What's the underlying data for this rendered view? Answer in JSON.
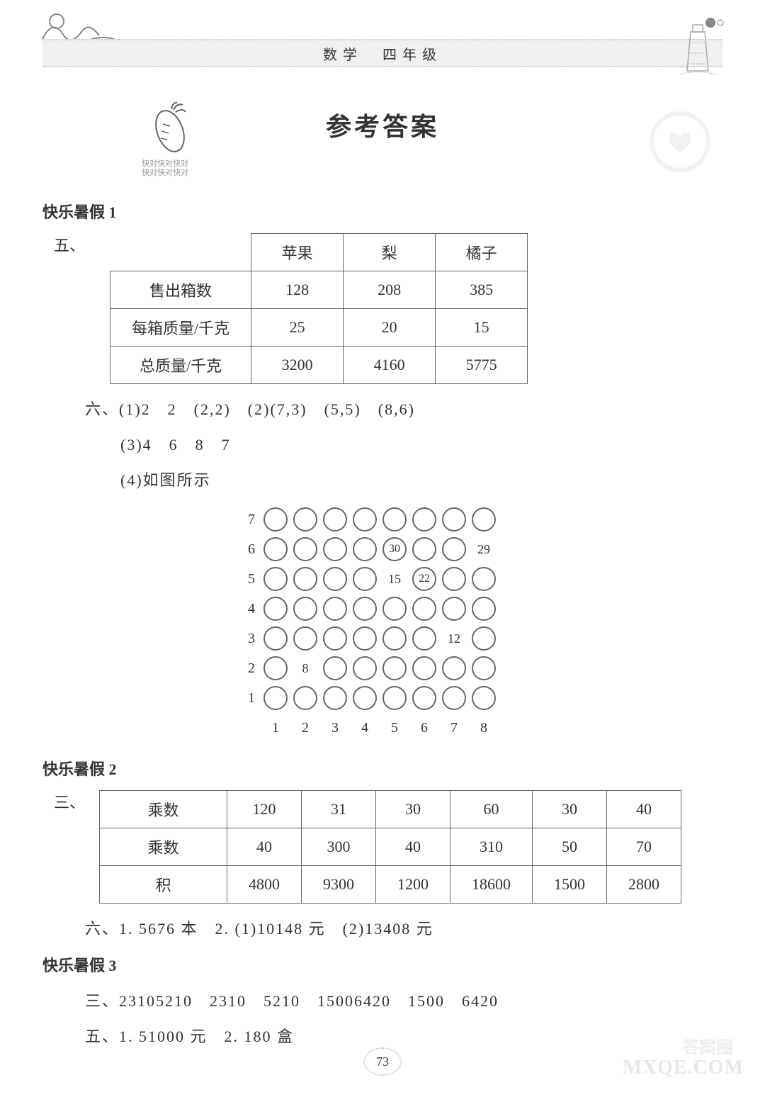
{
  "header": {
    "subject": "数学",
    "grade": "四年级"
  },
  "carrot_label": "快对快对快对\n快对快对快对",
  "main_title": "参考答案",
  "section1": {
    "title": "快乐暑假 1",
    "q5_label": "五、",
    "table1": {
      "columns": [
        "",
        "苹果",
        "梨",
        "橘子"
      ],
      "rows": [
        [
          "售出箱数",
          "128",
          "208",
          "385"
        ],
        [
          "每箱质量/千克",
          "25",
          "20",
          "15"
        ],
        [
          "总质量/千克",
          "3200",
          "4160",
          "5775"
        ]
      ]
    },
    "q6_line1": "六、(1)2　2　(2,2)　(2)(7,3)　(5,5)　(8,6)",
    "q6_line2": "(3)4　6　8　7",
    "q6_line3": "(4)如图所示",
    "grid": {
      "rows": 7,
      "cols": 8,
      "y_labels": [
        "7",
        "6",
        "5",
        "4",
        "3",
        "2",
        "1"
      ],
      "x_labels": [
        "1",
        "2",
        "3",
        "4",
        "5",
        "6",
        "7",
        "8"
      ],
      "circled_cells": [
        [
          6,
          5
        ],
        [
          5,
          6
        ]
      ],
      "labels": {
        "6,5": "30",
        "6,8": "29",
        "5,5": "15",
        "5,6": "22",
        "3,7": "12",
        "2,2": "8"
      }
    }
  },
  "section2": {
    "title": "快乐暑假 2",
    "q3_label": "三、",
    "table2": {
      "rows": [
        [
          "乘数",
          "120",
          "31",
          "30",
          "60",
          "30",
          "40"
        ],
        [
          "乘数",
          "40",
          "300",
          "40",
          "310",
          "50",
          "70"
        ],
        [
          "积",
          "4800",
          "9300",
          "1200",
          "18600",
          "1500",
          "2800"
        ]
      ]
    },
    "q6_line": "六、1. 5676 本　2. (1)10148 元　(2)13408 元"
  },
  "section3": {
    "title": "快乐暑假 3",
    "q3_line": "三、23105210　2310　5210　15006420　1500　6420",
    "q5_line": "五、1. 51000 元　2. 180 盒"
  },
  "page_number": "73",
  "watermarks": {
    "bottom1": "答案圈",
    "bottom2": "MXQE.COM"
  },
  "colors": {
    "text": "#333333",
    "border": "#666666",
    "light": "#cccccc",
    "bg": "#ffffff"
  }
}
